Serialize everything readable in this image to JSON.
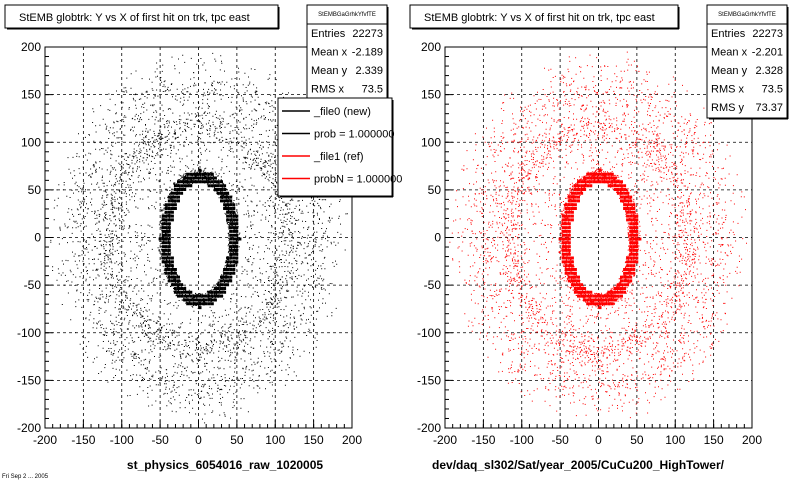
{
  "footer_text": "Fri Sep 2 ... 2005",
  "chart_data": [
    {
      "type": "scatter",
      "title": "StEMB globtrk: Y vs X of first hit on trk, tpc east",
      "xlabel": "st_physics_6054016_raw_1020005",
      "ylabel": "",
      "xlim": [
        -200,
        200
      ],
      "ylim": [
        -200,
        200
      ],
      "xticks": [
        "-200",
        "-150",
        "-100",
        "-50",
        "0",
        "50",
        "100",
        "150",
        "200"
      ],
      "yticks": [
        "200",
        "150",
        "100",
        "50",
        "0",
        "-50",
        "-100",
        "-150",
        "-200"
      ],
      "grid": true,
      "color": "#000000",
      "stats": {
        "name": "StEMBGaGrhkYfvfTE",
        "rows": [
          {
            "label": "Entries",
            "value": "22273"
          },
          {
            "label": "Mean x",
            "value": "-2.189"
          },
          {
            "label": "Mean y",
            "value": "2.339"
          },
          {
            "label": "RMS x",
            "value": "73.5"
          }
        ]
      },
      "legend": {
        "placement": "top-right",
        "entries": [
          {
            "label": "_file0 (new)",
            "color": "#000000"
          },
          {
            "label": "prob = 1.000000",
            "color": "#000000"
          },
          {
            "label": "_file1 (ref)",
            "color": "#ff0000"
          },
          {
            "label": "probN = 1.000000",
            "color": "#ff0000"
          }
        ]
      },
      "distribution": {
        "inner_hole_radius_x": 38,
        "inner_hole_radius_y": 58,
        "dense_ring_outer_x": 52,
        "dense_ring_outer_y": 72,
        "scatter_outer_radius": 195,
        "entries": 22273
      }
    },
    {
      "type": "scatter",
      "title": "StEMB globtrk: Y vs X of first hit on trk, tpc east",
      "xlabel": "dev/daq_sl302/Sat/year_2005/CuCu200_HighTower/",
      "ylabel": "",
      "xlim": [
        -200,
        200
      ],
      "ylim": [
        -200,
        200
      ],
      "xticks": [
        "-200",
        "-150",
        "-100",
        "-50",
        "0",
        "50",
        "100",
        "150",
        "200"
      ],
      "yticks": [
        "200",
        "150",
        "100",
        "50",
        "0",
        "-50",
        "-100",
        "-150",
        "-200"
      ],
      "grid": true,
      "color": "#ff0000",
      "stats": {
        "name": "StEMBGaGrhkYfvfTE",
        "rows": [
          {
            "label": "Entries",
            "value": "22273"
          },
          {
            "label": "Mean x",
            "value": "-2.201"
          },
          {
            "label": "Mean y",
            "value": "2.328"
          },
          {
            "label": "RMS x",
            "value": "73.5"
          },
          {
            "label": "RMS y",
            "value": "73.37"
          }
        ]
      },
      "distribution": {
        "inner_hole_radius_x": 38,
        "inner_hole_radius_y": 58,
        "dense_ring_outer_x": 52,
        "dense_ring_outer_y": 72,
        "scatter_outer_radius": 195,
        "entries": 22273
      }
    }
  ]
}
